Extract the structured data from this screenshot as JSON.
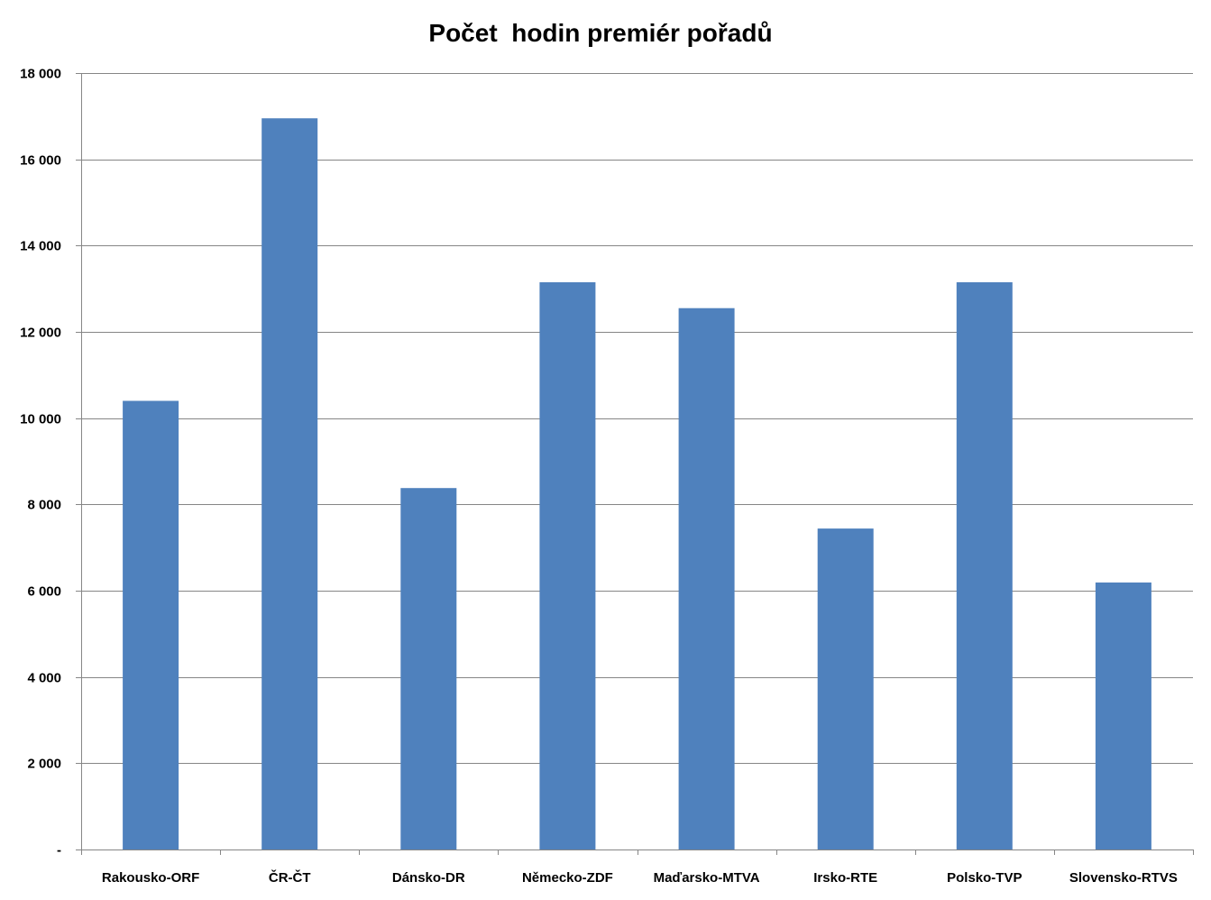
{
  "chart_data": {
    "type": "bar",
    "title": "Počet  hodin premiér pořadů",
    "xlabel": "",
    "ylabel": "",
    "categories": [
      "Rakousko-ORF",
      "ČR-ČT",
      "Dánsko-DR",
      "Německo-ZDF",
      "Maďarsko-MTVA",
      "Irsko-RTE",
      "Polsko-TVP",
      "Slovensko-RTVS"
    ],
    "values": [
      10400,
      16950,
      8380,
      13150,
      12550,
      7440,
      13150,
      6190
    ],
    "ylim": [
      0,
      18000
    ],
    "yticks": [
      0,
      2000,
      4000,
      6000,
      8000,
      10000,
      12000,
      14000,
      16000,
      18000
    ],
    "ytick_labels": [
      "-",
      "2 000",
      "4 000",
      "6 000",
      "8 000",
      "10 000",
      "12 000",
      "14 000",
      "16 000",
      "18 000"
    ],
    "grid": true,
    "legend": "none",
    "colors": {
      "bar": "#4f81bd",
      "grid": "#868686",
      "axis": "#868686",
      "text": "#000000"
    }
  }
}
